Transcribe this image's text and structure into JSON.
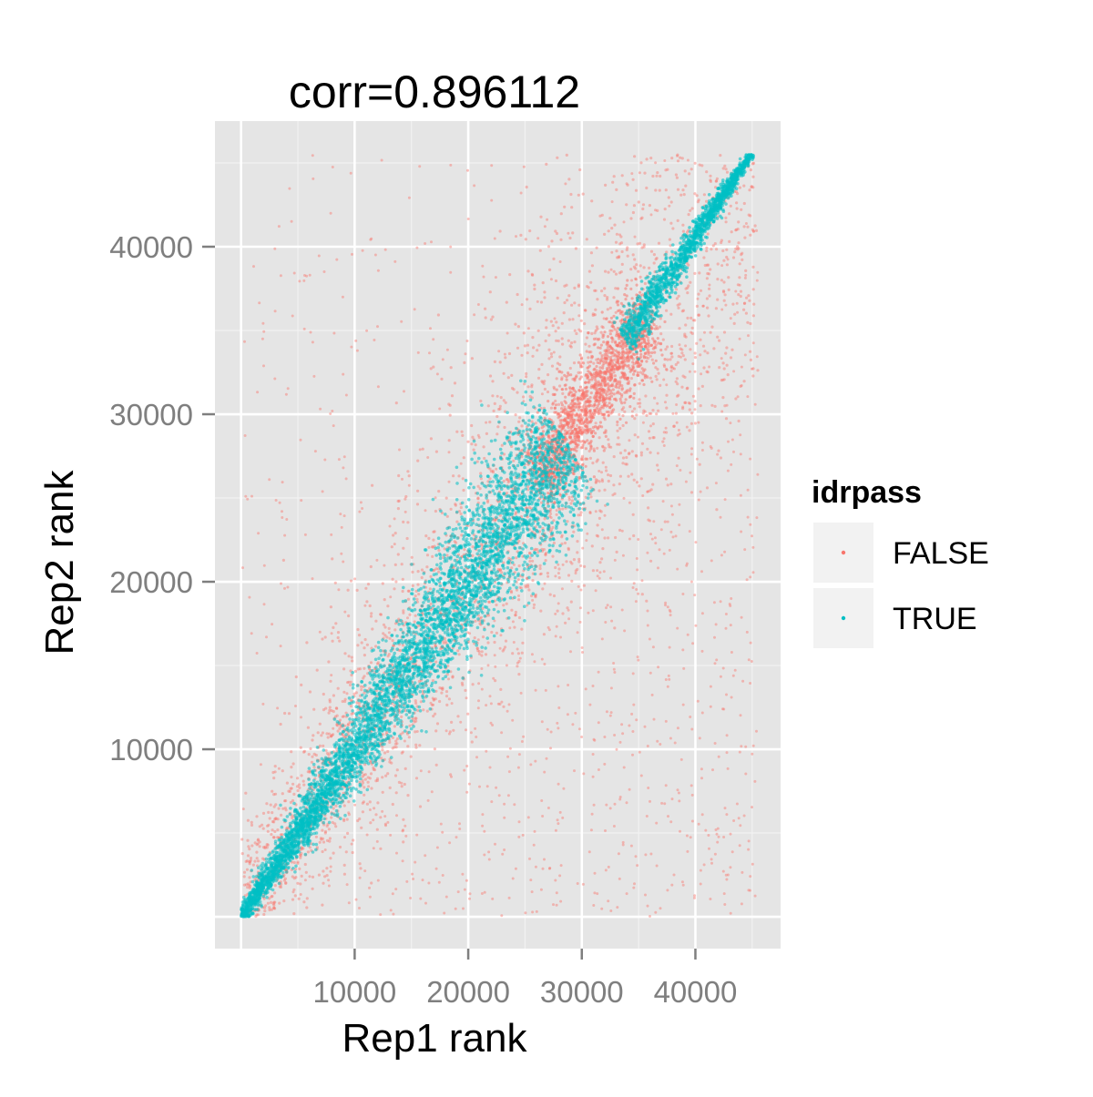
{
  "chart_data": {
    "type": "scatter",
    "title": "corr=0.896112",
    "xlabel": "Rep1 rank",
    "ylabel": "Rep2 rank",
    "xlim": [
      -2300,
      47500
    ],
    "ylim": [
      -1900,
      47500
    ],
    "x_ticks": [
      10000,
      20000,
      30000,
      40000
    ],
    "x_tick_labels": [
      "10000",
      "20000",
      "30000",
      "40000"
    ],
    "y_ticks": [
      10000,
      20000,
      30000,
      40000
    ],
    "y_tick_labels": [
      "10000",
      "20000",
      "30000",
      "40000"
    ],
    "grid": true,
    "legend": {
      "title": "idrpass",
      "position": "right",
      "entries": [
        "FALSE",
        "TRUE"
      ]
    },
    "series": [
      {
        "name": "FALSE",
        "color": "#F8766D",
        "description": "Peaks that fail IDR threshold; scattered broadly around the diagonal, concentrated in band along y=x from ~26000 to ~35000 and in outer bands",
        "approx_count": 6000
      },
      {
        "name": "TRUE",
        "color": "#00BFC4",
        "description": "Peaks passing IDR threshold; dense band along diagonal y=x from 0 to ~28000, and dense cluster from ~34000 to ~45500",
        "approx_count": 7000
      }
    ],
    "x_max": 45500,
    "y_max": 45500
  },
  "colors": {
    "panel_bg": "#E5E5E5",
    "grid_major": "#FFFFFF",
    "grid_minor": "#F2F2F2",
    "false_color": "#F8766D",
    "true_color": "#00BFC4",
    "tick_label": "#7F7F7F",
    "legend_key_bg": "#F2F2F2"
  }
}
